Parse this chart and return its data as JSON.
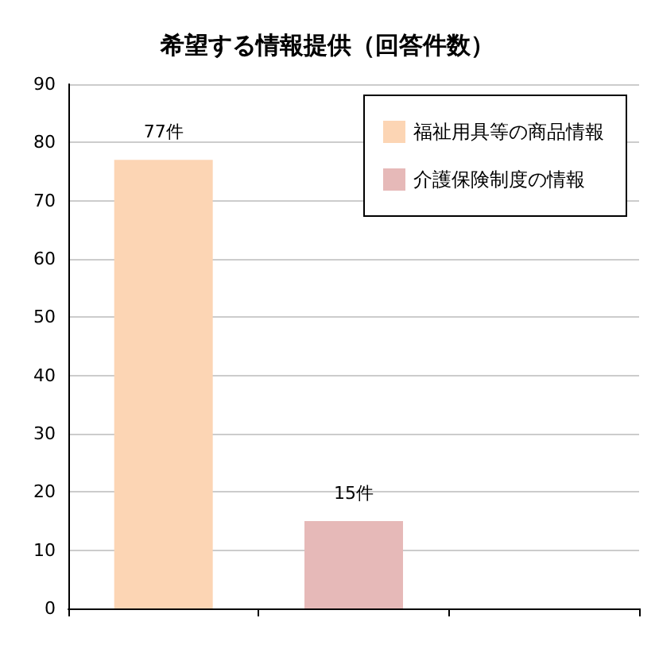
{
  "chart_data": {
    "type": "bar",
    "title": "希望する情報提供（回答件数）",
    "categories": [
      null,
      null,
      null
    ],
    "series": [
      {
        "name": "福祉用具等の商品情報",
        "color": "#fcd5b4",
        "values": [
          77,
          null,
          null
        ],
        "value_labels": [
          "77件",
          null,
          null
        ]
      },
      {
        "name": "介護保険制度の情報",
        "color": "#e6b9b8",
        "values": [
          null,
          15,
          null
        ],
        "value_labels": [
          null,
          "15件",
          null
        ]
      }
    ],
    "ylim": [
      0,
      90
    ],
    "yticks": [
      0,
      10,
      20,
      30,
      40,
      50,
      60,
      70,
      80,
      90
    ],
    "grid": "y",
    "legend": "top right",
    "tick_labels": "y"
  }
}
